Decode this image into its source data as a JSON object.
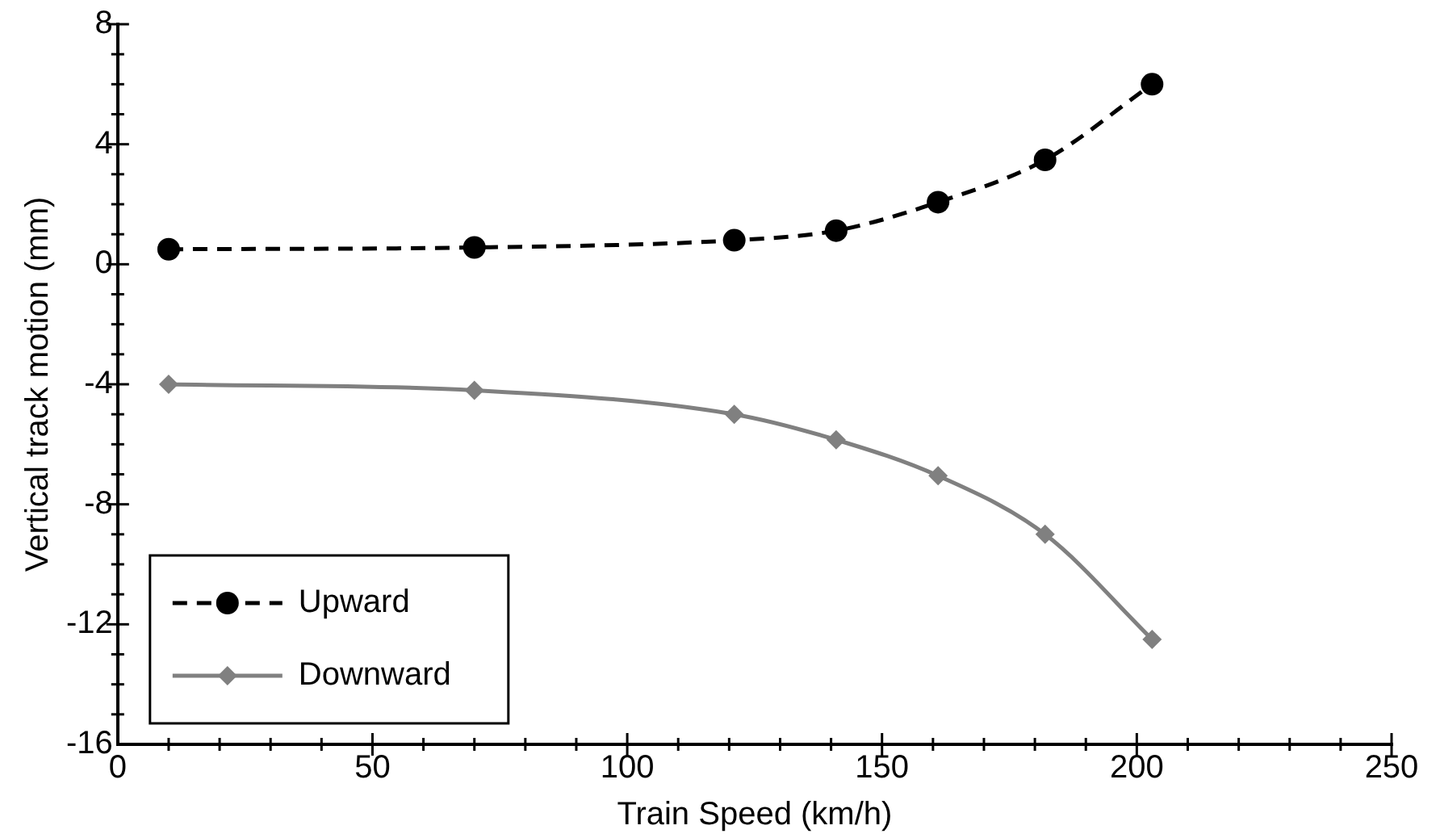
{
  "chart_data": {
    "type": "line",
    "xlabel": "Train Speed (km/h)",
    "ylabel": "Vertical track motion (mm)",
    "xlim": [
      0,
      250
    ],
    "ylim": [
      -16,
      8
    ],
    "xticks": [
      0,
      {
        "value": 10,
        "label": null
      },
      {
        "value": 20,
        "label": null
      },
      {
        "value": 30,
        "label": null
      },
      {
        "value": 40,
        "label": null
      },
      50,
      {
        "value": 60,
        "label": null
      },
      {
        "value": 70,
        "label": null
      },
      {
        "value": 80,
        "label": null
      },
      {
        "value": 90,
        "label": null
      },
      100,
      {
        "value": 110,
        "label": null
      },
      {
        "value": 120,
        "label": null
      },
      {
        "value": 130,
        "label": null
      },
      {
        "value": 140,
        "label": null
      },
      150,
      {
        "value": 160,
        "label": null
      },
      {
        "value": 170,
        "label": null
      },
      {
        "value": 180,
        "label": null
      },
      {
        "value": 190,
        "label": null
      },
      200,
      {
        "value": 210,
        "label": null
      },
      {
        "value": 220,
        "label": null
      },
      {
        "value": 230,
        "label": null
      },
      {
        "value": 240,
        "label": null
      },
      250
    ],
    "yticks": [
      -16,
      {
        "value": -15,
        "label": null
      },
      {
        "value": -14,
        "label": null
      },
      {
        "value": -13,
        "label": null
      },
      -12,
      {
        "value": -11,
        "label": null
      },
      {
        "value": -10,
        "label": null
      },
      {
        "value": -9,
        "label": null
      },
      -8,
      {
        "value": -7,
        "label": null
      },
      {
        "value": -6,
        "label": null
      },
      {
        "value": -5,
        "label": null
      },
      -4,
      {
        "value": -3,
        "label": null
      },
      {
        "value": -2,
        "label": null
      },
      {
        "value": -1,
        "label": null
      },
      0,
      {
        "value": 1,
        "label": null
      },
      {
        "value": 2,
        "label": null
      },
      {
        "value": 3,
        "label": null
      },
      4,
      {
        "value": 5,
        "label": null
      },
      {
        "value": 6,
        "label": null
      },
      {
        "value": 7,
        "label": null
      },
      8
    ],
    "x": [
      10,
      70,
      121,
      141,
      161,
      182,
      203
    ],
    "series": [
      {
        "name": "Upward",
        "color": "#000000",
        "marker": "circle",
        "line_style": "dashed",
        "values": [
          0.5,
          0.56,
          0.8,
          1.12,
          2.07,
          3.48,
          6.0
        ]
      },
      {
        "name": "Downward",
        "color": "#808080",
        "marker": "diamond",
        "line_style": "solid",
        "values": [
          -4.0,
          -4.2,
          -5.0,
          -5.85,
          -7.05,
          -9.0,
          -12.5
        ]
      }
    ],
    "grid": false,
    "legend": "bottom left"
  }
}
